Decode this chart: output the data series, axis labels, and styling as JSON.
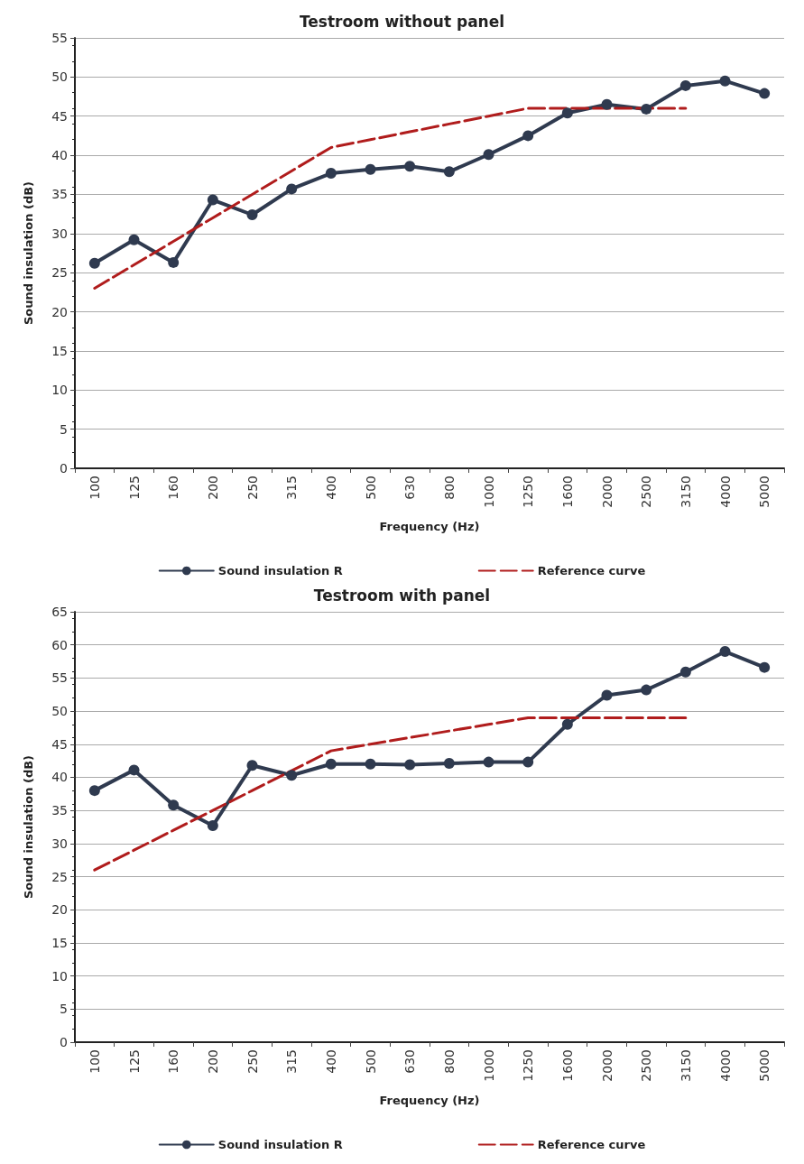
{
  "chart_data": [
    {
      "type": "line",
      "title": "Testroom without panel",
      "xlabel": "Frequency (Hz)",
      "ylabel": "Sound insulation (dB)",
      "categories": [
        "100",
        "125",
        "160",
        "200",
        "250",
        "315",
        "400",
        "500",
        "630",
        "800",
        "1000",
        "1250",
        "1600",
        "2000",
        "2500",
        "3150",
        "4000",
        "5000"
      ],
      "series": [
        {
          "name": "Sound insulation R",
          "color": "#2f3a4f",
          "marker": "circle",
          "line_style": "solid",
          "values": [
            26.2,
            29.2,
            26.3,
            34.3,
            32.4,
            35.7,
            37.7,
            38.2,
            38.6,
            37.9,
            40.1,
            42.5,
            45.4,
            46.5,
            45.9,
            48.9,
            49.5,
            47.9
          ]
        },
        {
          "name": "Reference curve",
          "color": "#b01c1c",
          "marker": "none",
          "line_style": "dashed",
          "values": [
            23,
            26,
            29,
            32,
            35,
            38,
            41,
            42,
            43,
            44,
            45,
            46,
            46,
            46,
            46,
            46,
            null,
            null
          ]
        }
      ],
      "ylim": [
        0,
        55
      ],
      "yticks": [
        0,
        5,
        10,
        15,
        20,
        25,
        30,
        35,
        40,
        45,
        50,
        55
      ],
      "grid": "y",
      "legend": "bottom"
    },
    {
      "type": "line",
      "title": "Testroom with panel",
      "xlabel": "Frequency (Hz)",
      "ylabel": "Sound insulation (dB)",
      "categories": [
        "100",
        "125",
        "160",
        "200",
        "250",
        "315",
        "400",
        "500",
        "630",
        "800",
        "1000",
        "1250",
        "1600",
        "2000",
        "2500",
        "3150",
        "4000",
        "5000"
      ],
      "series": [
        {
          "name": "Sound insulation R",
          "color": "#2f3a4f",
          "marker": "circle",
          "line_style": "solid",
          "values": [
            38,
            41.1,
            35.8,
            32.7,
            41.8,
            40.3,
            42,
            42,
            41.9,
            42.1,
            42.3,
            42.3,
            48,
            52.4,
            53.2,
            55.9,
            59,
            56.6
          ]
        },
        {
          "name": "Reference curve",
          "color": "#b01c1c",
          "marker": "none",
          "line_style": "dashed",
          "values": [
            26,
            29,
            32,
            35,
            38,
            41,
            44,
            45,
            46,
            47,
            48,
            49,
            49,
            49,
            49,
            49,
            null,
            null
          ]
        }
      ],
      "ylim": [
        0,
        65
      ],
      "yticks": [
        0,
        5,
        10,
        15,
        20,
        25,
        30,
        35,
        40,
        45,
        50,
        55,
        60,
        65
      ],
      "grid": "y",
      "legend": "bottom"
    }
  ]
}
